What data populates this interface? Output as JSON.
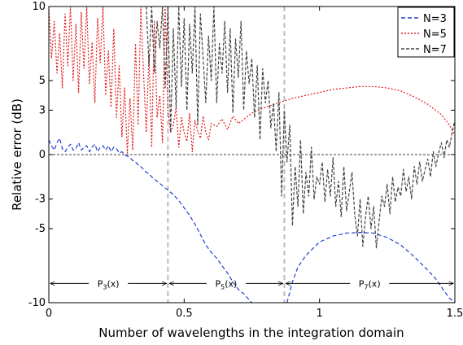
{
  "chart_data": {
    "type": "line",
    "title": "",
    "xlabel": "Number of wavelengths in the integration domain",
    "ylabel": "Relative error (dB)",
    "xlim": [
      0,
      1.5
    ],
    "ylim": [
      -10,
      10
    ],
    "xticks": [
      {
        "value": 0,
        "label": "0"
      },
      {
        "value": 0.5,
        "label": "0.5"
      },
      {
        "value": 1,
        "label": "1"
      },
      {
        "value": 1.5,
        "label": "1.5"
      }
    ],
    "yticks": [
      {
        "value": -10,
        "label": "-10"
      },
      {
        "value": -5,
        "label": "-5"
      },
      {
        "value": -3,
        "label": "-3"
      },
      {
        "value": 0,
        "label": "0"
      },
      {
        "value": 3,
        "label": "3"
      },
      {
        "value": 5,
        "label": "5"
      },
      {
        "value": 10,
        "label": "10"
      }
    ],
    "grid": false,
    "legend_position": "top-right",
    "reference_line": {
      "y": 0,
      "style": "dashed",
      "color": "#000000"
    },
    "vertical_markers": [
      {
        "x": 0.44,
        "color": "#bbbbbb"
      },
      {
        "x": 0.87,
        "color": "#bbbbbb"
      }
    ],
    "range_annotations": [
      {
        "from": 0.0,
        "to": 0.44,
        "y": -8.7,
        "base": "P",
        "sub": "3",
        "tail": "(x)"
      },
      {
        "from": 0.44,
        "to": 0.87,
        "y": -8.7,
        "base": "P",
        "sub": "5",
        "tail": "(x)"
      },
      {
        "from": 0.87,
        "to": 1.5,
        "y": -8.7,
        "base": "P",
        "sub": "7",
        "tail": "(x)"
      }
    ],
    "series": [
      {
        "name": "N=3",
        "color": "#1f3fd1",
        "dash": "5,3",
        "segments": [
          {
            "x": [
              0.0,
              0.01,
              0.02,
              0.03,
              0.04,
              0.05,
              0.06,
              0.07,
              0.08,
              0.09,
              0.1,
              0.11,
              0.12,
              0.13,
              0.14,
              0.15,
              0.16,
              0.17,
              0.18,
              0.19,
              0.2,
              0.21,
              0.22,
              0.23,
              0.24,
              0.25,
              0.26,
              0.27,
              0.28,
              0.29,
              0.3,
              0.31,
              0.32,
              0.33,
              0.34,
              0.35,
              0.36,
              0.37,
              0.38,
              0.4,
              0.42,
              0.44,
              0.46,
              0.48,
              0.5,
              0.52,
              0.54,
              0.56,
              0.58,
              0.6,
              0.62,
              0.64,
              0.66,
              0.68,
              0.7,
              0.72,
              0.74,
              0.75
            ],
            "y": [
              1.0,
              0.6,
              0.3,
              0.8,
              1.1,
              0.4,
              0.2,
              0.5,
              0.7,
              0.3,
              0.4,
              0.8,
              0.3,
              0.5,
              0.6,
              0.2,
              0.5,
              0.7,
              0.2,
              0.5,
              0.6,
              0.3,
              0.6,
              0.2,
              0.5,
              0.4,
              0.1,
              0.2,
              0.0,
              -0.1,
              -0.2,
              -0.4,
              -0.5,
              -0.7,
              -0.8,
              -1.0,
              -1.2,
              -1.3,
              -1.5,
              -1.8,
              -2.1,
              -2.4,
              -2.7,
              -3.1,
              -3.6,
              -4.1,
              -4.7,
              -5.4,
              -6.1,
              -6.6,
              -7.0,
              -7.5,
              -8.0,
              -8.6,
              -9.1,
              -9.4,
              -9.8,
              -10.0
            ]
          },
          {
            "x": [
              0.88,
              0.9,
              0.92,
              0.95,
              1.0,
              1.05,
              1.1,
              1.15,
              1.2,
              1.25,
              1.3,
              1.35,
              1.4,
              1.43,
              1.46,
              1.48,
              1.5
            ],
            "y": [
              -10.0,
              -8.6,
              -7.6,
              -6.8,
              -5.9,
              -5.5,
              -5.3,
              -5.25,
              -5.3,
              -5.6,
              -6.1,
              -6.9,
              -7.8,
              -8.4,
              -9.2,
              -9.7,
              -10.0
            ]
          }
        ]
      },
      {
        "name": "N=5",
        "color": "#e21a1a",
        "dash": "2,2",
        "segments": [
          {
            "x": [
              0.0,
              0.01,
              0.02,
              0.03,
              0.04,
              0.05,
              0.06,
              0.07,
              0.08,
              0.09,
              0.1,
              0.11,
              0.12,
              0.13,
              0.14,
              0.15,
              0.16,
              0.17,
              0.18,
              0.19,
              0.2,
              0.21,
              0.22,
              0.23,
              0.24,
              0.25,
              0.26,
              0.27,
              0.28,
              0.29,
              0.3,
              0.31,
              0.32,
              0.33,
              0.34,
              0.35,
              0.36,
              0.37,
              0.38,
              0.39,
              0.4,
              0.41,
              0.42,
              0.43,
              0.44,
              0.45,
              0.46,
              0.47,
              0.48,
              0.49,
              0.5,
              0.51,
              0.52,
              0.53,
              0.54,
              0.55,
              0.56,
              0.57,
              0.58,
              0.59,
              0.6,
              0.62,
              0.64,
              0.66,
              0.68,
              0.7,
              0.75,
              0.8,
              0.85,
              0.9,
              0.95,
              1.0,
              1.05,
              1.1,
              1.15,
              1.2,
              1.25,
              1.3,
              1.35,
              1.4,
              1.45,
              1.48,
              1.5
            ],
            "y": [
              10.0,
              6.5,
              9.0,
              5.5,
              8.2,
              4.5,
              9.5,
              6.0,
              10.0,
              5.0,
              8.8,
              4.2,
              9.6,
              5.8,
              10.0,
              4.8,
              7.6,
              3.5,
              9.2,
              6.2,
              10.0,
              4.0,
              7.0,
              3.2,
              8.5,
              2.5,
              6.0,
              1.2,
              4.5,
              0.1,
              3.8,
              0.3,
              7.5,
              2.0,
              10.0,
              5.5,
              1.5,
              6.8,
              0.5,
              9.0,
              2.5,
              4.0,
              0.8,
              10.0,
              3.0,
              1.5,
              2.0,
              3.2,
              0.5,
              2.5,
              1.5,
              0.9,
              2.8,
              0.2,
              2.3,
              1.6,
              1.1,
              2.6,
              1.5,
              1.0,
              2.1,
              1.9,
              2.4,
              1.7,
              2.6,
              2.1,
              2.8,
              3.2,
              3.5,
              3.8,
              4.0,
              4.2,
              4.4,
              4.5,
              4.6,
              4.6,
              4.5,
              4.3,
              3.9,
              3.4,
              2.7,
              2.0,
              1.3
            ]
          }
        ]
      },
      {
        "name": "N=7",
        "color": "#444444",
        "dash": "4,2",
        "segments": [
          {
            "x": [
              0.36,
              0.37,
              0.38,
              0.39,
              0.4,
              0.41,
              0.42,
              0.43,
              0.44,
              0.45,
              0.46,
              0.47,
              0.48,
              0.49,
              0.5,
              0.51,
              0.52,
              0.53,
              0.54,
              0.55,
              0.56,
              0.57,
              0.58,
              0.59,
              0.6,
              0.61,
              0.62,
              0.63,
              0.64,
              0.65,
              0.66,
              0.67,
              0.68,
              0.69,
              0.7,
              0.71,
              0.72,
              0.73,
              0.74,
              0.75,
              0.76,
              0.77,
              0.78,
              0.79,
              0.8,
              0.81,
              0.82,
              0.83,
              0.84,
              0.85,
              0.86,
              0.87,
              0.88,
              0.89,
              0.9,
              0.91,
              0.92,
              0.93,
              0.94,
              0.95,
              0.96,
              0.97,
              0.98,
              0.99,
              1.0,
              1.01,
              1.02,
              1.03,
              1.04,
              1.05,
              1.06,
              1.07,
              1.08,
              1.09,
              1.1,
              1.11,
              1.12,
              1.13,
              1.14,
              1.15,
              1.16,
              1.17,
              1.18,
              1.19,
              1.2,
              1.21,
              1.22,
              1.23,
              1.24,
              1.25,
              1.26,
              1.27,
              1.28,
              1.29,
              1.3,
              1.31,
              1.32,
              1.33,
              1.34,
              1.35,
              1.36,
              1.37,
              1.38,
              1.39,
              1.4,
              1.41,
              1.42,
              1.43,
              1.44,
              1.45,
              1.46,
              1.47,
              1.48,
              1.49,
              1.5
            ],
            "y": [
              10.0,
              6.0,
              10.0,
              5.5,
              9.0,
              7.2,
              10.0,
              4.5,
              10.0,
              1.5,
              8.5,
              3.2,
              10.0,
              4.6,
              9.2,
              3.0,
              8.8,
              5.5,
              10.0,
              2.0,
              9.5,
              6.5,
              3.5,
              8.0,
              5.0,
              10.0,
              3.5,
              7.5,
              5.5,
              9.0,
              4.2,
              8.5,
              2.8,
              7.8,
              5.2,
              9.0,
              3.0,
              7.0,
              4.8,
              6.5,
              2.5,
              6.0,
              1.0,
              5.8,
              3.5,
              5.0,
              1.8,
              3.5,
              0.2,
              4.2,
              -2.8,
              3.0,
              -0.5,
              2.0,
              -4.8,
              -0.8,
              -3.5,
              1.0,
              -4.0,
              -1.2,
              -2.8,
              0.5,
              -3.0,
              -1.5,
              -2.0,
              -0.5,
              -3.2,
              -1.0,
              -2.8,
              -0.2,
              -3.5,
              -1.8,
              -4.2,
              -0.8,
              -3.8,
              -2.5,
              -1.2,
              -4.0,
              -5.5,
              -3.0,
              -6.2,
              -4.2,
              -2.8,
              -5.0,
              -3.5,
              -6.3,
              -4.5,
              -2.8,
              -3.5,
              -2.0,
              -4.0,
              -1.5,
              -3.2,
              -2.2,
              -2.8,
              -1.0,
              -2.5,
              -1.5,
              -3.0,
              -0.8,
              -2.0,
              -0.5,
              -1.8,
              -1.0,
              -0.3,
              -1.5,
              0.2,
              -0.8,
              0.1,
              0.8,
              -0.2,
              1.0,
              0.5,
              1.5,
              2.3
            ]
          }
        ]
      }
    ]
  }
}
